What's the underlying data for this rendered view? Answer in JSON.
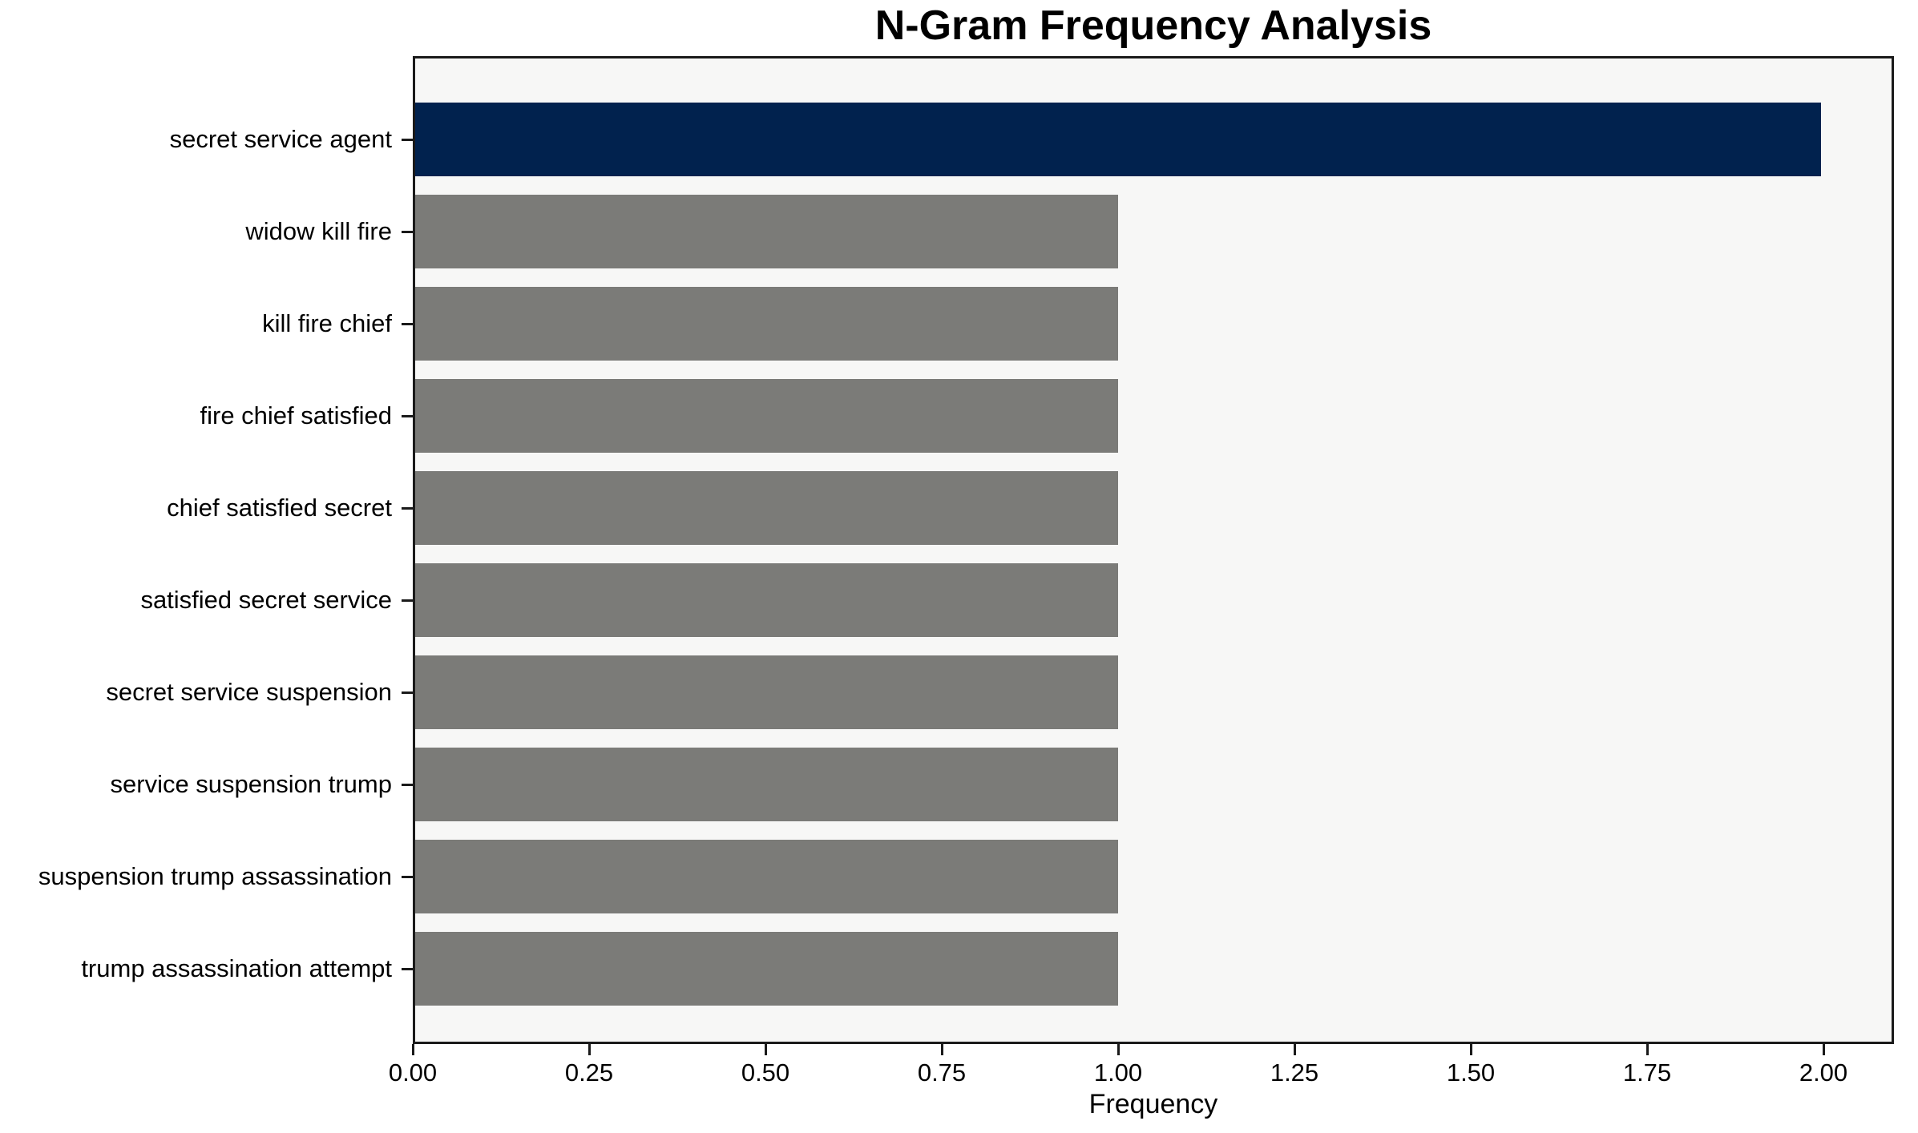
{
  "chart_data": {
    "type": "bar",
    "orientation": "horizontal",
    "title": "N-Gram Frequency Analysis",
    "xlabel": "Frequency",
    "ylabel": "",
    "categories": [
      "secret service agent",
      "widow kill fire",
      "kill fire chief",
      "fire chief satisfied",
      "chief satisfied secret",
      "satisfied secret service",
      "secret service suspension",
      "service suspension trump",
      "suspension trump assassination",
      "trump assassination attempt"
    ],
    "values": [
      2,
      1,
      1,
      1,
      1,
      1,
      1,
      1,
      1,
      1
    ],
    "bar_colors": [
      "#01224e",
      "#7b7b78",
      "#7b7b78",
      "#7b7b78",
      "#7b7b78",
      "#7b7b78",
      "#7b7b78",
      "#7b7b78",
      "#7b7b78",
      "#7b7b78"
    ],
    "xlim": [
      0,
      2.1
    ],
    "xticks": [
      {
        "value": 0.0,
        "label": "0.00"
      },
      {
        "value": 0.25,
        "label": "0.25"
      },
      {
        "value": 0.5,
        "label": "0.50"
      },
      {
        "value": 0.75,
        "label": "0.75"
      },
      {
        "value": 1.0,
        "label": "1.00"
      },
      {
        "value": 1.25,
        "label": "1.25"
      },
      {
        "value": 1.5,
        "label": "1.50"
      },
      {
        "value": 1.75,
        "label": "1.75"
      },
      {
        "value": 2.0,
        "label": "2.00"
      }
    ],
    "grid": false,
    "legend": null,
    "colors": {
      "highlight_bar": "#01224e",
      "default_bar": "#7b7b78",
      "plot_background": "#f7f7f6",
      "figure_background": "#ffffff",
      "axis": "#1a1a1a",
      "text": "#000000"
    }
  }
}
